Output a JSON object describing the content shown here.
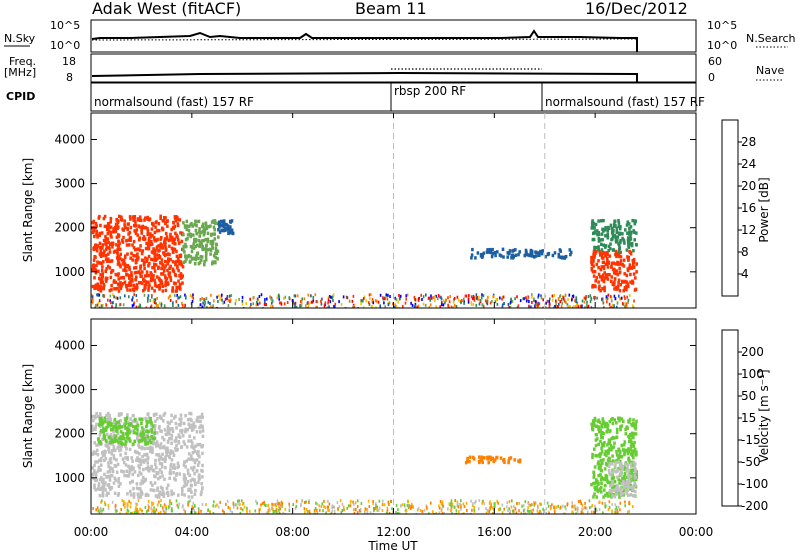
{
  "header": {
    "station": "Adak West (fitACF)",
    "beam": "Beam 11",
    "date": "16/Dec/2012"
  },
  "top_panels": {
    "nsky_label": "N.Sky",
    "nsky_ticks": [
      "10^5",
      "10^0"
    ],
    "nsearch_label": "N.Search",
    "freq_label_line1": "Freq.",
    "freq_label_line2": "[MHz]",
    "freq_ticks": [
      "18",
      "8"
    ],
    "nave_label": "Nave",
    "nave_ticks": [
      "60",
      "0"
    ],
    "cpid_label": "CPID",
    "cpid_segments": [
      {
        "label": "normalsound (fast) 157 RF",
        "start_h": 0,
        "end_h": 12
      },
      {
        "label": "rbsp 200 RF",
        "start_h": 12,
        "end_h": 18
      },
      {
        "label": "normalsound (fast) 157 RF",
        "start_h": 18,
        "end_h": 24
      }
    ]
  },
  "colorbars": {
    "power": {
      "label": "Power [dB]",
      "ticks": [
        "28",
        "24",
        "20",
        "16",
        "12",
        "8",
        "4"
      ],
      "colors": [
        "#ff0000",
        "#ff3300",
        "#ff7f00",
        "#ffbf00",
        "#6aa84f",
        "#2e8b57",
        "#1c5fa0",
        "#0000ff"
      ]
    },
    "velocity": {
      "label": "Velocity [m s⁻¹]",
      "ticks": [
        "200",
        "100",
        "50",
        "15",
        "-15",
        "-50",
        "-100",
        "-200"
      ],
      "colors": [
        "#1f3fbf",
        "#2e8b57",
        "#66cc33",
        "#c0c0c0",
        "#ffb000",
        "#ff8000",
        "#ff4000",
        "#ff0000"
      ]
    }
  },
  "chart_data": [
    {
      "type": "heatmap",
      "title": "",
      "xlabel": "",
      "ylabel": "Slant Range [km]",
      "x_ticks": [
        "00:00",
        "04:00",
        "08:00",
        "12:00",
        "16:00",
        "20:00",
        "00:00"
      ],
      "y_ticks": [
        1000,
        2000,
        3000,
        4000
      ],
      "xlim_hours": [
        0,
        24
      ],
      "ylim_km": [
        180,
        4600
      ],
      "quantity": "Power [dB]",
      "regions": [
        {
          "t0": 0.0,
          "t1": 3.6,
          "r0": 600,
          "r1": 2300,
          "value_db": 26
        },
        {
          "t0": 3.6,
          "t1": 5.0,
          "r0": 1200,
          "r1": 2200,
          "value_db": 14
        },
        {
          "t0": 5.0,
          "t1": 5.6,
          "r0": 1900,
          "r1": 2200,
          "value_db": 6
        },
        {
          "t0": 15.0,
          "t1": 19.0,
          "r0": 1350,
          "r1": 1550,
          "value_db": 6
        },
        {
          "t0": 19.8,
          "t1": 21.6,
          "r0": 600,
          "r1": 1500,
          "value_db": 26
        },
        {
          "t0": 19.8,
          "t1": 21.6,
          "r0": 1500,
          "r1": 2200,
          "value_db": 10
        }
      ]
    },
    {
      "type": "heatmap",
      "title": "",
      "xlabel": "Time UT",
      "ylabel": "Slant Range [km]",
      "x_ticks": [
        "00:00",
        "04:00",
        "08:00",
        "12:00",
        "16:00",
        "20:00",
        "00:00"
      ],
      "y_ticks": [
        1000,
        2000,
        3000,
        4000
      ],
      "xlim_hours": [
        0,
        24
      ],
      "ylim_km": [
        180,
        4600
      ],
      "quantity": "Velocity [m s⁻¹]",
      "regions": [
        {
          "t0": 0.0,
          "t1": 4.4,
          "r0": 600,
          "r1": 2500,
          "value_ms": 0
        },
        {
          "t0": 0.2,
          "t1": 2.5,
          "r0": 1800,
          "r1": 2400,
          "value_ms": 40
        },
        {
          "t0": 14.8,
          "t1": 17.0,
          "r0": 1380,
          "r1": 1520,
          "value_ms": -60
        },
        {
          "t0": 19.8,
          "t1": 21.6,
          "r0": 600,
          "r1": 2400,
          "value_ms": 40
        },
        {
          "t0": 20.5,
          "t1": 21.6,
          "r0": 600,
          "r1": 1400,
          "value_ms": 0
        }
      ]
    }
  ]
}
